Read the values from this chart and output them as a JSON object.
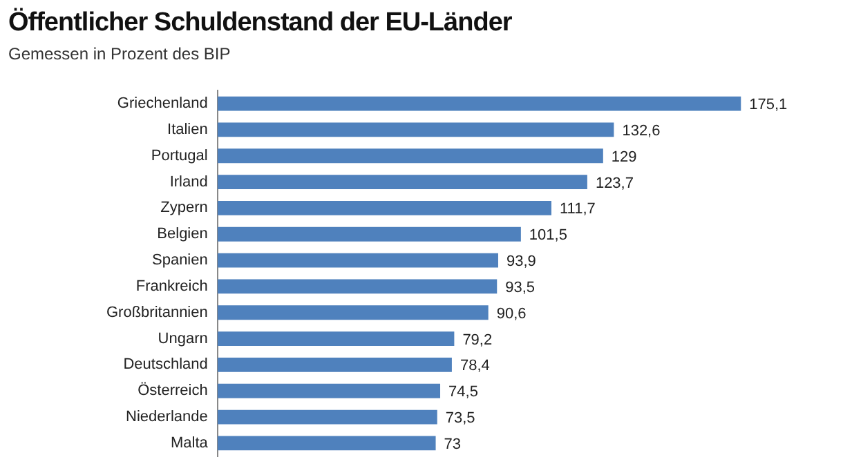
{
  "chart_data": {
    "type": "bar",
    "orientation": "horizontal",
    "title": "Öffentlicher Schuldenstand der EU-Länder",
    "subtitle": "Gemessen in Prozent des BIP",
    "categories": [
      "Griechenland",
      "Italien",
      "Portugal",
      "Irland",
      "Zypern",
      "Belgien",
      "Spanien",
      "Frankreich",
      "Großbritannien",
      "Ungarn",
      "Deutschland",
      "Österreich",
      "Niederlande",
      "Malta"
    ],
    "values": [
      175.1,
      132.6,
      129,
      123.7,
      111.7,
      101.5,
      93.9,
      93.5,
      90.6,
      79.2,
      78.4,
      74.5,
      73.5,
      73
    ],
    "value_labels": [
      "175,1",
      "132,6",
      "129",
      "123,7",
      "111,7",
      "101,5",
      "93,9",
      "93,5",
      "90,6",
      "79,2",
      "78,4",
      "74,5",
      "73,5",
      "73"
    ],
    "color": "#4f81bd"
  }
}
